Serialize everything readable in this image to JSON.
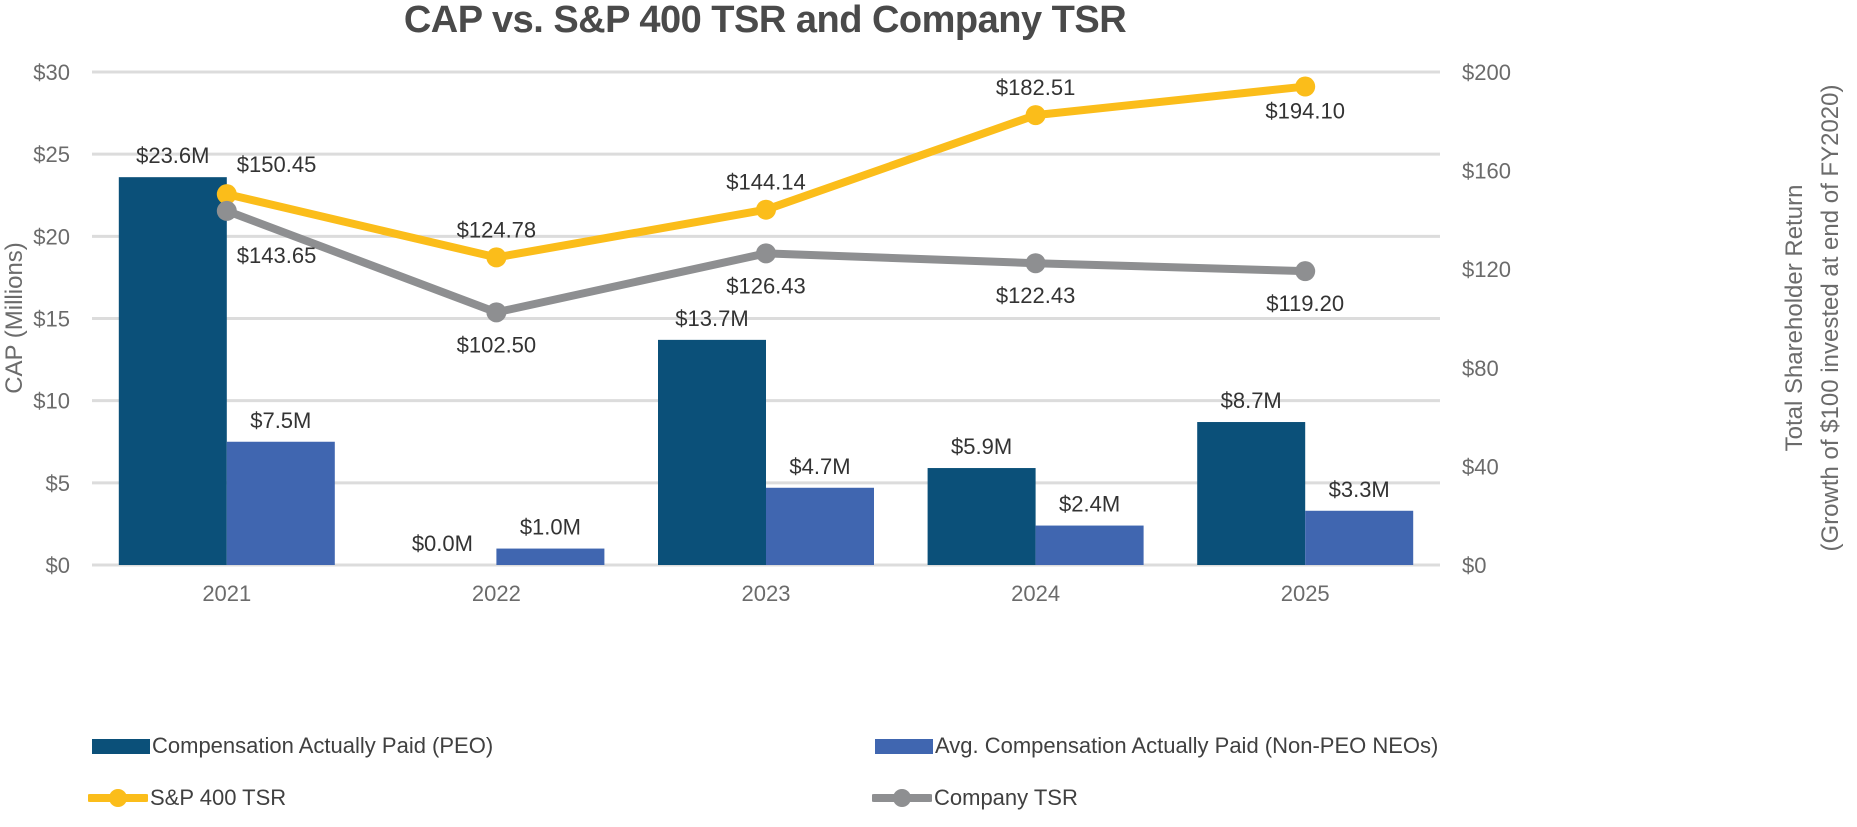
{
  "chart_data": {
    "type": "bar+line",
    "title": "CAP vs. S&P 400 TSR and Company TSR",
    "categories": [
      "2021",
      "2022",
      "2023",
      "2024",
      "2025"
    ],
    "y_left": {
      "label": "CAP (Millions)",
      "range": [
        0,
        30
      ],
      "ticks": [
        0,
        5,
        10,
        15,
        20,
        25,
        30
      ],
      "tick_labels": [
        "$0",
        "$5",
        "$10",
        "$15",
        "$20",
        "$25",
        "$30"
      ]
    },
    "y_right": {
      "label_line1": "Total Shareholder Return",
      "label_line2": "(Growth of $100 invested at end of FY2020)",
      "range": [
        0,
        200
      ],
      "ticks": [
        0,
        40,
        80,
        120,
        160,
        200
      ],
      "tick_labels": [
        "$0",
        "$40",
        "$80",
        "$120",
        "$160",
        "$200"
      ]
    },
    "grid": true,
    "bar_series": [
      {
        "name": "Compensation Actually Paid (PEO)",
        "color": "#0b5079",
        "axis": "left",
        "values": [
          23.6,
          0.0,
          13.7,
          5.9,
          8.7
        ],
        "labels": [
          "$23.6M",
          "$0.0M",
          "$13.7M",
          "$5.9M",
          "$8.7M"
        ]
      },
      {
        "name": "Avg. Compensation Actually Paid (Non-PEO NEOs)",
        "color": "#4066b0",
        "axis": "left",
        "values": [
          7.5,
          1.0,
          4.7,
          2.4,
          3.3
        ],
        "labels": [
          "$7.5M",
          "$1.0M",
          "$4.7M",
          "$2.4M",
          "$3.3M"
        ]
      }
    ],
    "line_series": [
      {
        "name": "S&P 400 TSR",
        "color": "#fbbd1a",
        "axis": "right",
        "values": [
          150.45,
          124.78,
          144.14,
          182.51,
          194.1
        ],
        "labels": [
          "$150.45",
          "$124.78",
          "$144.14",
          "$182.51",
          "$194.10"
        ]
      },
      {
        "name": "Company TSR",
        "color": "#8e8f91",
        "axis": "right",
        "values": [
          143.65,
          102.5,
          126.43,
          122.43,
          119.2
        ],
        "labels": [
          "$143.65",
          "$102.50",
          "$126.43",
          "$122.43",
          "$119.20"
        ]
      }
    ],
    "legend_position": "bottom"
  }
}
